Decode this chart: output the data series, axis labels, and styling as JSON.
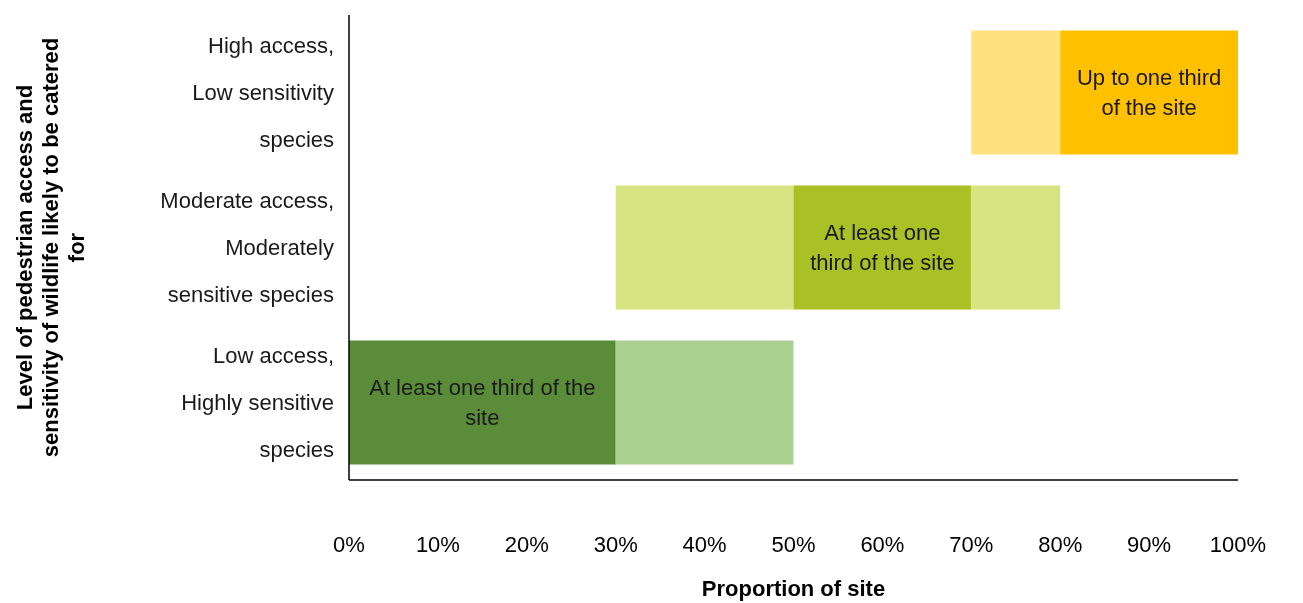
{
  "chart_data": {
    "type": "bar",
    "orientation": "horizontal",
    "xlabel": "Proportion of site",
    "ylabel": "Level of pedestrian access and sensitivity of wildlife likely to be catered for",
    "categories": [
      "High access,\nLow sensitivity species",
      "Moderate access,\nModerately sensitive species",
      "Low access,\nHighly sensitive species"
    ],
    "xlim": [
      0,
      100
    ],
    "xticks": [
      {
        "value": 0,
        "label": "0%"
      },
      {
        "value": 10,
        "label": "10%"
      },
      {
        "value": 20,
        "label": "20%"
      },
      {
        "value": 30,
        "label": "30%"
      },
      {
        "value": 40,
        "label": "40%"
      },
      {
        "value": 50,
        "label": "50%"
      },
      {
        "value": 60,
        "label": "60%"
      },
      {
        "value": 70,
        "label": "70%"
      },
      {
        "value": 80,
        "label": "80%"
      },
      {
        "value": 90,
        "label": "90%"
      },
      {
        "value": 100,
        "label": "100%"
      }
    ],
    "grid": false,
    "series": [
      {
        "color": "#ffe17f",
        "values": [
          10,
          null,
          null
        ],
        "base": [
          70,
          null,
          null
        ]
      },
      {
        "color": "#ffc000",
        "values": [
          20,
          null,
          null
        ],
        "base": [
          80,
          null,
          null
        ],
        "value_labels": [
          "Up to one third of the site",
          null,
          null
        ]
      },
      {
        "color": "#d6e481",
        "values": [
          null,
          20,
          null
        ],
        "base": [
          null,
          30,
          null
        ]
      },
      {
        "color": "#a9c125",
        "values": [
          null,
          20,
          null
        ],
        "base": [
          null,
          50,
          null
        ],
        "value_labels": [
          null,
          "At least one third of the site",
          null
        ]
      },
      {
        "color": "#d6e481",
        "values": [
          null,
          10,
          null
        ],
        "base": [
          null,
          70,
          null
        ]
      },
      {
        "color": "#5b8c3a",
        "values": [
          null,
          null,
          30
        ],
        "base": [
          null,
          null,
          0
        ],
        "value_labels": [
          null,
          null,
          "At least one third of the site"
        ]
      },
      {
        "color": "#a9d08e",
        "values": [
          null,
          null,
          20
        ],
        "base": [
          null,
          null,
          30
        ]
      }
    ]
  }
}
